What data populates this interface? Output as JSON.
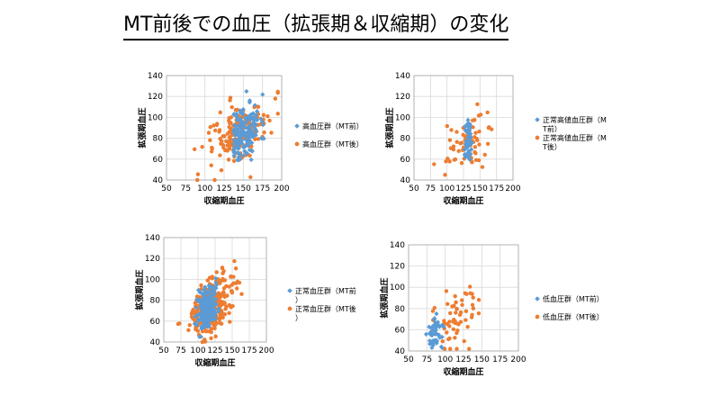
{
  "page": {
    "title": "MT前後での血圧（拡張期＆収縮期）の変化"
  },
  "colors": {
    "before": "#5B9BD5",
    "after": "#ED7D31",
    "grid": "#d9d9d9",
    "axis": "#a6a6a6"
  },
  "chart_data": [
    {
      "type": "scatter",
      "xlabel": "収縮期血圧",
      "ylabel": "拡張期血圧",
      "xlim": [
        50,
        200
      ],
      "ylim": [
        40,
        140
      ],
      "xticks": [
        50,
        75,
        100,
        125,
        150,
        175,
        200
      ],
      "yticks": [
        40,
        60,
        80,
        100,
        120,
        140
      ],
      "legend_position": "right",
      "grid": true,
      "series": [
        {
          "name": "高血圧群（MT前）",
          "color_key": "before",
          "marker": "diamond",
          "count": 160,
          "center": [
            152,
            86
          ],
          "spread": [
            10,
            14
          ],
          "xr": [
            138,
            180
          ],
          "yr": [
            55,
            138
          ],
          "seed": 11
        },
        {
          "name": "高血圧群（MT後）",
          "color_key": "after",
          "marker": "circle",
          "count": 150,
          "center": [
            145,
            84
          ],
          "spread": [
            22,
            15
          ],
          "xr": [
            60,
            195
          ],
          "yr": [
            40,
            132
          ],
          "seed": 12
        }
      ]
    },
    {
      "type": "scatter",
      "xlabel": "収縮期血圧",
      "ylabel": "拡張期血圧",
      "xlim": [
        50,
        200
      ],
      "ylim": [
        40,
        140
      ],
      "xticks": [
        50,
        75,
        100,
        125,
        150,
        175,
        200
      ],
      "yticks": [
        40,
        60,
        80,
        100,
        120,
        140
      ],
      "legend_position": "right",
      "grid": true,
      "series": [
        {
          "name": "正常高値血圧群（MT前）",
          "color_key": "before",
          "marker": "diamond",
          "count": 60,
          "center": [
            133,
            76
          ],
          "spread": [
            3,
            10
          ],
          "xr": [
            127,
            139
          ],
          "yr": [
            55,
            100
          ],
          "seed": 21
        },
        {
          "name": "正常高値血圧群（MT後）",
          "color_key": "after",
          "marker": "circle",
          "count": 65,
          "center": [
            128,
            76
          ],
          "spread": [
            16,
            12
          ],
          "xr": [
            65,
            178
          ],
          "yr": [
            42,
            115
          ],
          "seed": 22
        }
      ]
    },
    {
      "type": "scatter",
      "xlabel": "収縮期血圧",
      "ylabel": "拡張期血圧",
      "xlim": [
        50,
        200
      ],
      "ylim": [
        40,
        140
      ],
      "xticks": [
        50,
        75,
        100,
        125,
        150,
        175,
        200
      ],
      "yticks": [
        40,
        60,
        80,
        100,
        120,
        140
      ],
      "legend_position": "right",
      "grid": true,
      "series": [
        {
          "name": "正常血圧群（MT前）",
          "color_key": "before",
          "marker": "diamond",
          "count": 200,
          "center": [
            113,
            72
          ],
          "spread": [
            8,
            10
          ],
          "xr": [
            92,
            130
          ],
          "yr": [
            45,
            108
          ],
          "seed": 31
        },
        {
          "name": "正常血圧群（MT後）",
          "color_key": "after",
          "marker": "circle",
          "count": 280,
          "center": [
            118,
            74
          ],
          "spread": [
            17,
            13
          ],
          "xr": [
            60,
            195
          ],
          "yr": [
            40,
            120
          ],
          "seed": 32
        }
      ]
    },
    {
      "type": "scatter",
      "xlabel": "収縮期血圧",
      "ylabel": "拡張期血圧",
      "xlim": [
        50,
        200
      ],
      "ylim": [
        40,
        140
      ],
      "xticks": [
        50,
        75,
        100,
        125,
        150,
        175,
        200
      ],
      "yticks": [
        40,
        60,
        80,
        100,
        120,
        140
      ],
      "legend_position": "right",
      "grid": true,
      "series": [
        {
          "name": "低血圧群（MT前）",
          "color_key": "before",
          "marker": "diamond",
          "count": 55,
          "center": [
            88,
            58
          ],
          "spread": [
            6,
            7
          ],
          "xr": [
            72,
            100
          ],
          "yr": [
            43,
            78
          ],
          "seed": 41
        },
        {
          "name": "低血圧群（MT後）",
          "color_key": "after",
          "marker": "circle",
          "count": 60,
          "center": [
            112,
            72
          ],
          "spread": [
            18,
            14
          ],
          "xr": [
            78,
            168
          ],
          "yr": [
            42,
            113
          ],
          "seed": 42
        }
      ]
    }
  ]
}
